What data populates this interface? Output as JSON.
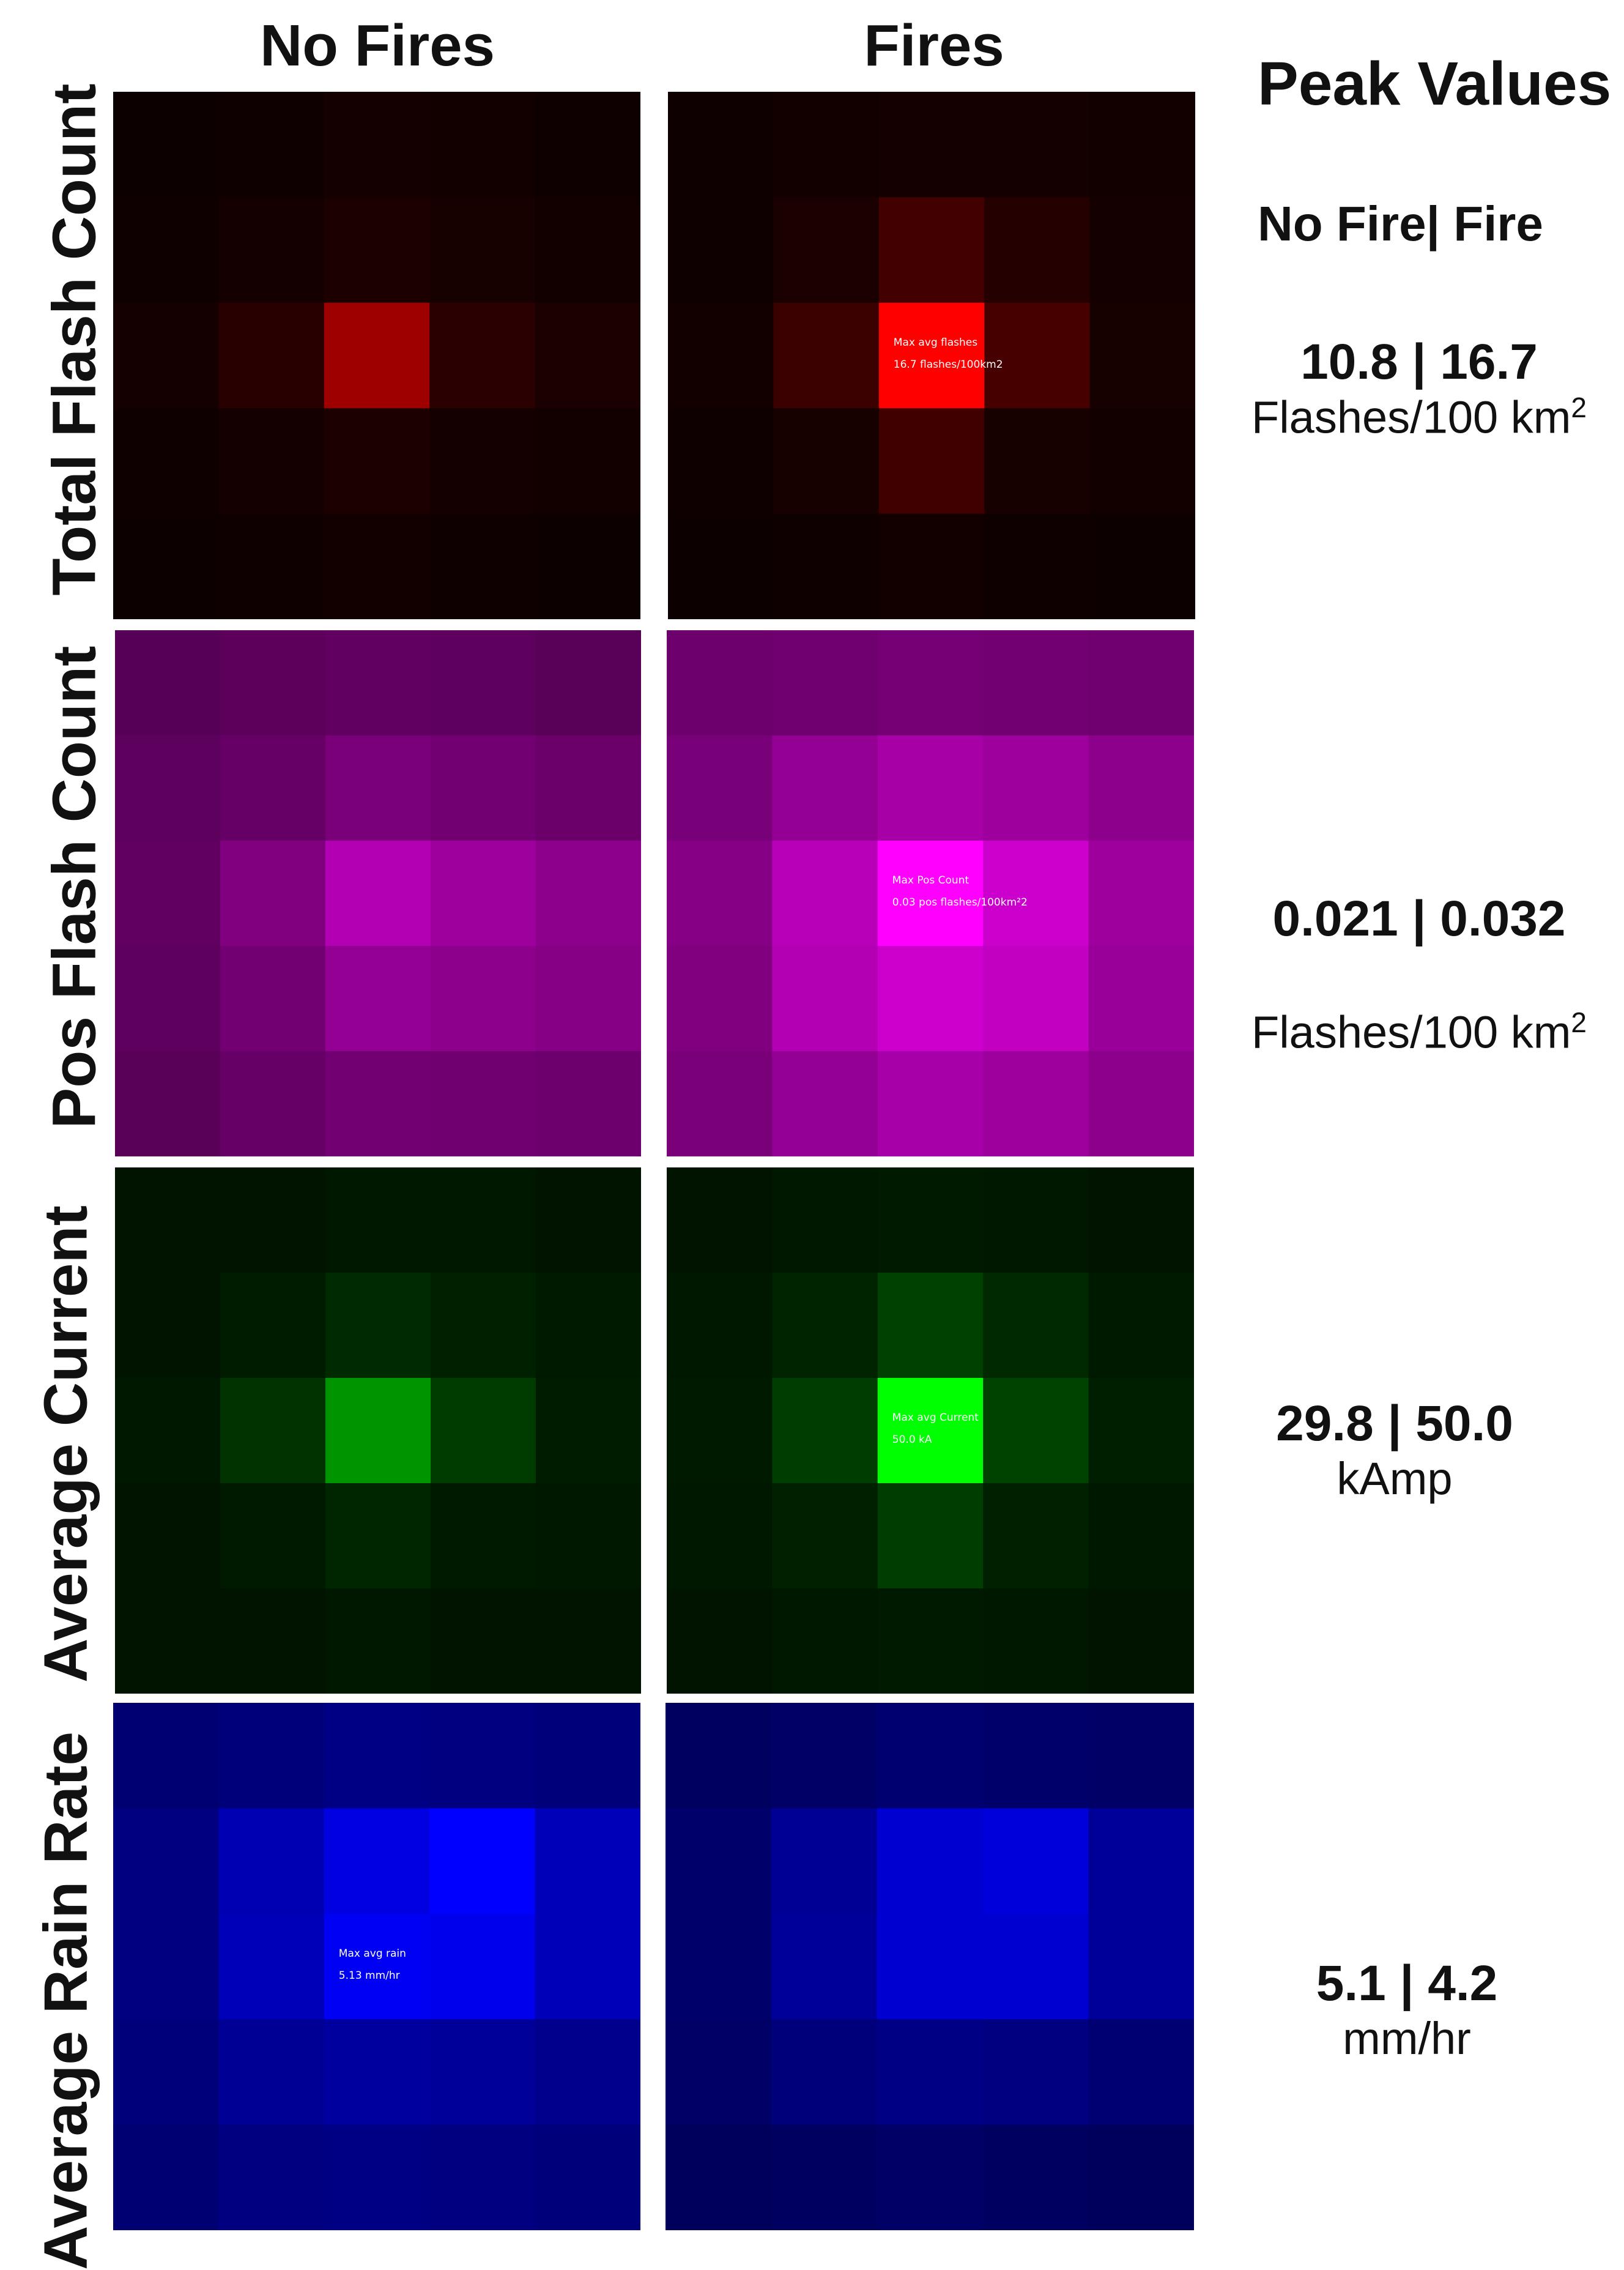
{
  "columns": {
    "no_fires": "No Fires",
    "fires": "Fires"
  },
  "peak": {
    "header": "Peak Values",
    "subheader": "No Fire| Fire"
  },
  "rows": [
    {
      "label": "Total Flash Count",
      "color": "#ff0000",
      "peak_value": "10.8 | 16.7",
      "unit_base": "Flashes/100 km",
      "unit_sup": "2",
      "grid_no_fire": [
        [
          0.05,
          0.06,
          0.08,
          0.07,
          0.06
        ],
        [
          0.06,
          0.08,
          0.11,
          0.09,
          0.07
        ],
        [
          0.08,
          0.16,
          0.62,
          0.17,
          0.1
        ],
        [
          0.06,
          0.08,
          0.11,
          0.08,
          0.07
        ],
        [
          0.05,
          0.06,
          0.07,
          0.06,
          0.05
        ]
      ],
      "grid_fire": [
        [
          0.06,
          0.07,
          0.08,
          0.08,
          0.07
        ],
        [
          0.06,
          0.1,
          0.26,
          0.14,
          0.08
        ],
        [
          0.07,
          0.23,
          1.0,
          0.28,
          0.09
        ],
        [
          0.06,
          0.09,
          0.25,
          0.09,
          0.07
        ],
        [
          0.05,
          0.06,
          0.07,
          0.06,
          0.05
        ]
      ],
      "annotation_no_fire": null,
      "annotation_fire": [
        "Max avg flashes",
        "16.7 flashes/100km2"
      ]
    },
    {
      "label": "Pos Flash Count",
      "color": "#ff00ff",
      "peak_value": "0.021 | 0.032",
      "unit_base": "Flashes/100 km",
      "unit_sup": "2",
      "grid_no_fire": [
        [
          0.34,
          0.36,
          0.38,
          0.37,
          0.35
        ],
        [
          0.37,
          0.4,
          0.48,
          0.45,
          0.42
        ],
        [
          0.38,
          0.5,
          0.7,
          0.62,
          0.55
        ],
        [
          0.37,
          0.45,
          0.58,
          0.55,
          0.52
        ],
        [
          0.35,
          0.4,
          0.45,
          0.44,
          0.43
        ]
      ],
      "grid_fire": [
        [
          0.43,
          0.44,
          0.46,
          0.45,
          0.44
        ],
        [
          0.47,
          0.58,
          0.65,
          0.62,
          0.55
        ],
        [
          0.52,
          0.72,
          1.0,
          0.8,
          0.62
        ],
        [
          0.5,
          0.7,
          0.8,
          0.76,
          0.6
        ],
        [
          0.48,
          0.58,
          0.66,
          0.62,
          0.55
        ]
      ],
      "annotation_no_fire": null,
      "annotation_fire": [
        "Max Pos Count",
        "0.03 pos flashes/100km²2"
      ]
    },
    {
      "label": "Average Current",
      "color": "#00ff00",
      "peak_value": "29.8 | 50.0",
      "unit_base": "kAmp",
      "unit_sup": "",
      "grid_no_fire": [
        [
          0.08,
          0.08,
          0.09,
          0.09,
          0.08
        ],
        [
          0.08,
          0.11,
          0.17,
          0.13,
          0.1
        ],
        [
          0.09,
          0.2,
          0.58,
          0.23,
          0.11
        ],
        [
          0.08,
          0.1,
          0.15,
          0.1,
          0.09
        ],
        [
          0.08,
          0.08,
          0.09,
          0.08,
          0.08
        ]
      ],
      "grid_fire": [
        [
          0.08,
          0.09,
          0.1,
          0.09,
          0.08
        ],
        [
          0.09,
          0.14,
          0.25,
          0.16,
          0.1
        ],
        [
          0.1,
          0.24,
          1.0,
          0.26,
          0.12
        ],
        [
          0.09,
          0.13,
          0.24,
          0.13,
          0.09
        ],
        [
          0.08,
          0.09,
          0.1,
          0.09,
          0.08
        ]
      ],
      "annotation_no_fire": null,
      "annotation_fire": [
        "Max avg Current",
        "50.0 kA"
      ]
    },
    {
      "label": "Average Rain Rate",
      "color": "#0000ff",
      "peak_value": "5.1 | 4.2",
      "unit_base": "mm/hr",
      "unit_sup": "",
      "grid_no_fire": [
        [
          0.45,
          0.48,
          0.52,
          0.5,
          0.48
        ],
        [
          0.5,
          0.7,
          0.88,
          1.0,
          0.72
        ],
        [
          0.5,
          0.72,
          0.95,
          0.93,
          0.72
        ],
        [
          0.48,
          0.58,
          0.62,
          0.6,
          0.55
        ],
        [
          0.45,
          0.5,
          0.52,
          0.5,
          0.48
        ]
      ],
      "grid_fire": [
        [
          0.38,
          0.4,
          0.44,
          0.42,
          0.4
        ],
        [
          0.42,
          0.58,
          0.82,
          0.86,
          0.6
        ],
        [
          0.42,
          0.6,
          0.82,
          0.82,
          0.6
        ],
        [
          0.4,
          0.48,
          0.52,
          0.5,
          0.45
        ],
        [
          0.36,
          0.38,
          0.4,
          0.38,
          0.36
        ]
      ],
      "annotation_no_fire": [
        "Max avg rain",
        "5.13 mm/hr"
      ],
      "annotation_fire": null
    }
  ],
  "chart_data": {
    "type": "heatmap",
    "columns": [
      "No Fires",
      "Fires"
    ],
    "row_labels": [
      "Total Flash Count",
      "Pos Flash Count",
      "Average Current",
      "Average Rain Rate"
    ],
    "peak_values": [
      {
        "metric": "Total Flash Count",
        "no_fire": 10.8,
        "fire": 16.7,
        "unit": "Flashes/100 km2"
      },
      {
        "metric": "Pos Flash Count",
        "no_fire": 0.021,
        "fire": 0.032,
        "unit": "Flashes/100 km2"
      },
      {
        "metric": "Average Current",
        "no_fire": 29.8,
        "fire": 50.0,
        "unit": "kAmp"
      },
      {
        "metric": "Average Rain Rate",
        "no_fire": 5.1,
        "fire": 4.2,
        "unit": "mm/hr"
      }
    ]
  }
}
